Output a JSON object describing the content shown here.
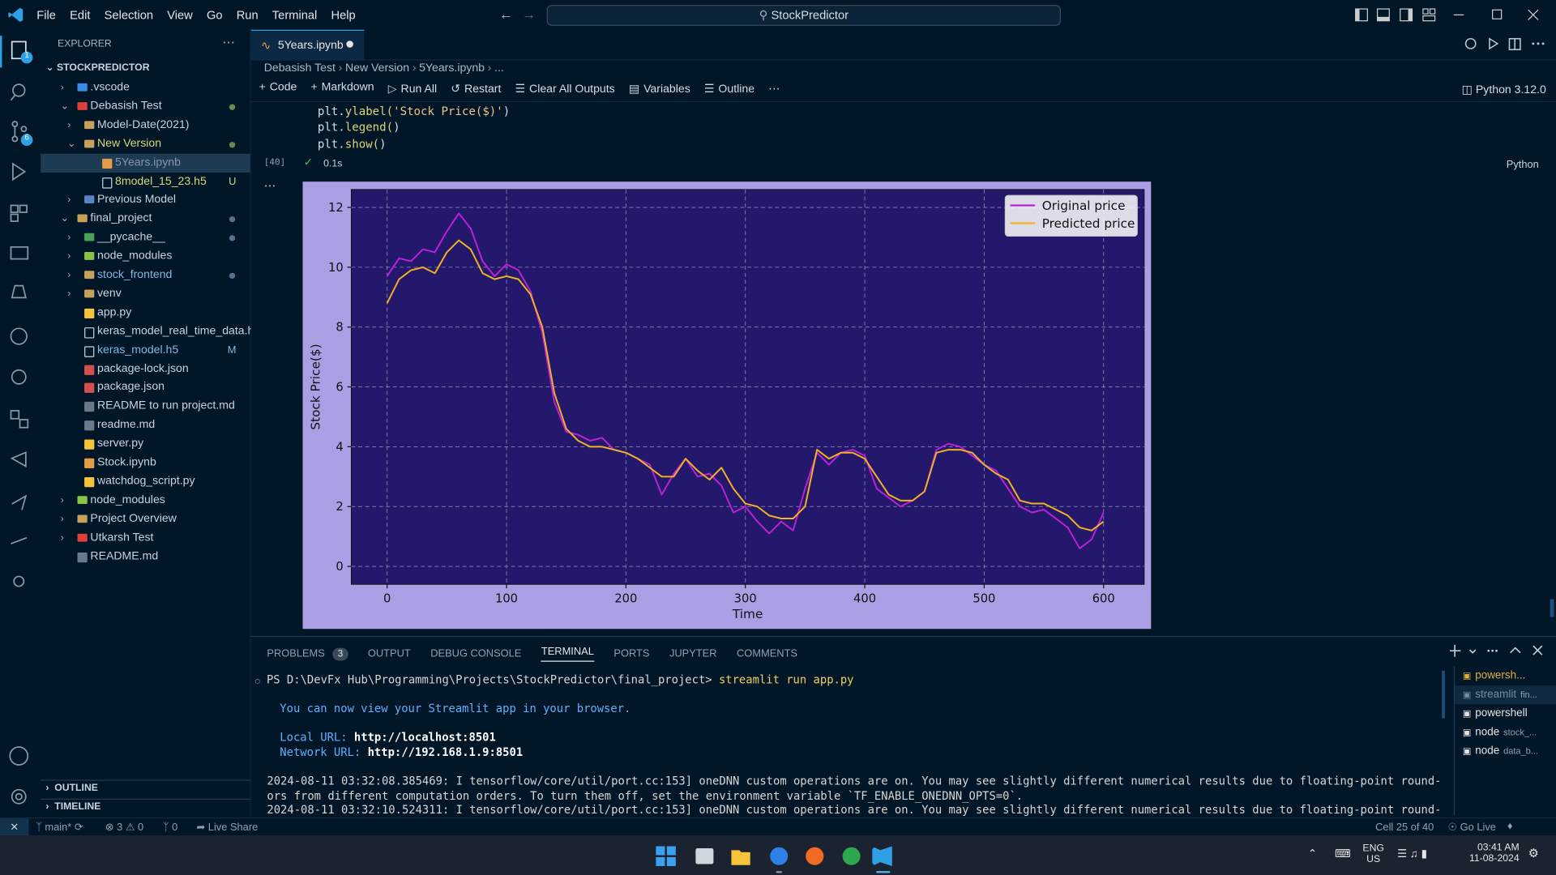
{
  "titlebar": {
    "menu": [
      "File",
      "Edit",
      "Selection",
      "View",
      "Go",
      "Run",
      "Terminal",
      "Help"
    ],
    "search": "StockPredictor"
  },
  "activity_badges": [
    "1",
    "6"
  ],
  "explorer": {
    "title": "EXPLORER",
    "root": "STOCKPREDICTOR",
    "items": [
      {
        "label": ".vscode"
      },
      {
        "label": "Debasish Test"
      },
      {
        "label": "Model-Date(2021)"
      },
      {
        "label": "New Version"
      },
      {
        "label": "5Years.ipynb"
      },
      {
        "label": "8model_15_23.h5",
        "badge": "U"
      },
      {
        "label": "Previous Model"
      },
      {
        "label": "final_project"
      },
      {
        "label": "__pycache__"
      },
      {
        "label": "node_modules"
      },
      {
        "label": "stock_frontend"
      },
      {
        "label": "venv"
      },
      {
        "label": "app.py"
      },
      {
        "label": "keras_model_real_time_data.h5"
      },
      {
        "label": "keras_model.h5",
        "badge": "M"
      },
      {
        "label": "package-lock.json"
      },
      {
        "label": "package.json"
      },
      {
        "label": "README to run project.md"
      },
      {
        "label": "readme.md"
      },
      {
        "label": "server.py"
      },
      {
        "label": "Stock.ipynb"
      },
      {
        "label": "watchdog_script.py"
      },
      {
        "label": "node_modules"
      },
      {
        "label": "Project Overview"
      },
      {
        "label": "Utkarsh Test"
      },
      {
        "label": "README.md"
      }
    ],
    "outline": "OUTLINE",
    "timeline": "TIMELINE"
  },
  "editor": {
    "tab": "5Years.ipynb",
    "breadcrumb": [
      "Debasish Test",
      "New Version",
      "5Years.ipynb",
      "..."
    ],
    "toolbar": [
      "Code",
      "Markdown",
      "Run All",
      "Restart",
      "Clear All Outputs",
      "Variables",
      "Outline"
    ],
    "kernel": "Python 3.12.0",
    "code": [
      [
        "plt.",
        "ylabel(",
        "'Stock Price($)'",
        ")"
      ],
      [
        "plt.",
        "legend(",
        ")"
      ],
      [
        "plt.",
        "show(",
        ")"
      ]
    ],
    "exec_count": "[40]",
    "duration": "0.1s",
    "language": "Python"
  },
  "chart_data": {
    "type": "line",
    "xlabel": "Time",
    "ylabel": "Stock Price($)",
    "x": [
      0,
      10,
      20,
      30,
      40,
      50,
      60,
      70,
      80,
      90,
      100,
      110,
      120,
      130,
      140,
      150,
      160,
      170,
      180,
      190,
      200,
      210,
      220,
      230,
      240,
      250,
      260,
      270,
      280,
      290,
      300,
      310,
      320,
      330,
      340,
      350,
      360,
      370,
      380,
      390,
      400,
      410,
      420,
      430,
      440,
      450,
      460,
      470,
      480,
      490,
      500,
      510,
      520,
      530,
      540,
      550,
      560,
      570,
      580,
      590,
      600
    ],
    "series": [
      {
        "name": "Original price",
        "color": "#bb22d8",
        "values": [
          9.7,
          10.3,
          10.2,
          10.6,
          10.5,
          11.2,
          11.8,
          11.3,
          10.2,
          9.7,
          10.1,
          9.9,
          9.2,
          7.8,
          5.5,
          4.5,
          4.4,
          4.2,
          4.3,
          3.9,
          3.8,
          3.6,
          3.4,
          2.4,
          3.1,
          3.6,
          3.0,
          3.1,
          2.7,
          1.8,
          2.0,
          1.5,
          1.1,
          1.5,
          1.2,
          2.6,
          3.8,
          3.4,
          3.8,
          3.9,
          3.7,
          2.6,
          2.3,
          2.0,
          2.2,
          2.5,
          3.9,
          4.1,
          4.0,
          3.7,
          3.4,
          3.2,
          2.6,
          2.0,
          1.8,
          1.9,
          1.6,
          1.3,
          0.6,
          0.9,
          1.8
        ]
      },
      {
        "name": "Predicted price",
        "color": "#f2b322",
        "values": [
          8.8,
          9.6,
          9.9,
          10.0,
          9.8,
          10.5,
          10.9,
          10.6,
          9.8,
          9.6,
          9.7,
          9.6,
          9.1,
          8.0,
          5.8,
          4.6,
          4.2,
          4.0,
          4.0,
          3.9,
          3.8,
          3.6,
          3.3,
          3.0,
          3.0,
          3.6,
          3.2,
          2.9,
          3.3,
          2.6,
          2.1,
          2.0,
          1.7,
          1.6,
          1.6,
          2.0,
          3.9,
          3.6,
          3.8,
          3.8,
          3.6,
          3.0,
          2.4,
          2.2,
          2.2,
          2.5,
          3.8,
          3.9,
          3.9,
          3.8,
          3.4,
          3.1,
          2.9,
          2.2,
          2.1,
          2.1,
          1.9,
          1.7,
          1.3,
          1.2,
          1.5
        ]
      }
    ],
    "xlim": [
      -30,
      634
    ],
    "ylim": [
      -0.6,
      12.6
    ],
    "xticks": [
      0,
      100,
      200,
      300,
      400,
      500,
      600
    ],
    "yticks": [
      0,
      2,
      4,
      6,
      8,
      10,
      12
    ],
    "grid": true,
    "legend": "upper right"
  },
  "panel": {
    "tabs": [
      "PROBLEMS",
      "OUTPUT",
      "DEBUG CONSOLE",
      "TERMINAL",
      "PORTS",
      "JUPYTER",
      "COMMENTS"
    ],
    "problems_count": "3",
    "terminal": {
      "prompt": "PS D:\\DevFx Hub\\Programming\\Projects\\StockPredictor\\final_project>",
      "command": "streamlit run app.py",
      "info": "You can now view your Streamlit app in your browser.",
      "local_label": "Local URL:",
      "local_url": "http://localhost:8501",
      "network_label": "Network URL:",
      "network_url": "http://192.168.1.9:8501",
      "log": [
        "2024-08-11 03:32:08.385469: I tensorflow/core/util/port.cc:153] oneDNN custom operations are on. You may see slightly different numerical results due to floating-point round-off err",
        "ors from different computation orders. To turn them off, set the environment variable `TF_ENABLE_ONEDNN_OPTS=0`.",
        "2024-08-11 03:32:10.524311: I tensorflow/core/util/port.cc:153] oneDNN custom operations are on. You may see slightly different numerical results due to floating-point round-off err"
      ]
    },
    "terminals": [
      {
        "name": "powersh..."
      },
      {
        "name": "streamlit",
        "detail": "fin..."
      },
      {
        "name": "powershell"
      },
      {
        "name": "node",
        "detail": "stock_..."
      },
      {
        "name": "node",
        "detail": "data_b..."
      }
    ]
  },
  "statusbar": {
    "branch": "main*",
    "errors": "3",
    "warnings": "0",
    "ports": "0",
    "live_share": "Live Share",
    "cell": "Cell 25 of 40",
    "go_live": "Go Live"
  },
  "taskbar": {
    "lang": "ENG",
    "region": "US",
    "time": "03:41 AM",
    "date": "11-08-2024"
  }
}
